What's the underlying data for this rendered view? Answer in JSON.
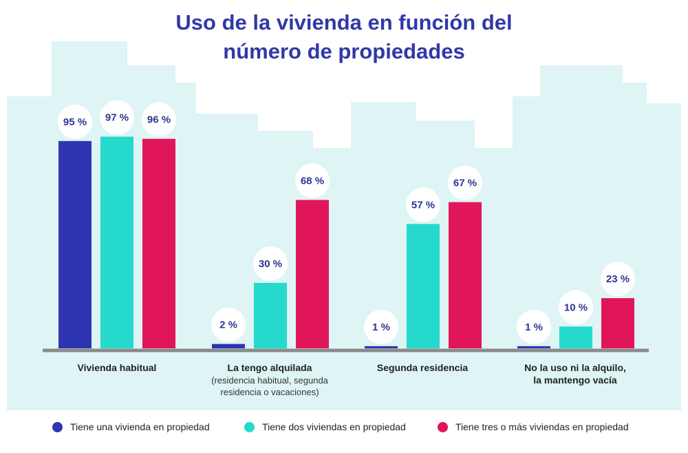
{
  "title": {
    "line1": "Uso de la vivienda en función del",
    "line2": "número de propiedades"
  },
  "colors": {
    "background_skyline": "#dff4f4",
    "baseline": "#8a8a8a",
    "label_bubble": "#ffffff"
  },
  "chart_data": {
    "type": "bar",
    "title": "Uso de la vivienda en función del número de propiedades",
    "categories": [
      "Vivienda habitual",
      "La tengo alquilada (residencia habitual, segunda residencia o vacaciones)",
      "Segunda residencia",
      "No la uso ni la alquilo, la mantengo vacía"
    ],
    "category_lines": [
      {
        "main": [
          "Vivienda habitual"
        ],
        "sub": []
      },
      {
        "main": [
          "La tengo alquilada"
        ],
        "sub": [
          "(residencia habitual, segunda",
          "residencia o vacaciones)"
        ]
      },
      {
        "main": [
          "Segunda residencia"
        ],
        "sub": []
      },
      {
        "main": [
          "No la uso ni la alquilo,",
          "la mantengo vacía"
        ],
        "sub": []
      }
    ],
    "series": [
      {
        "name": "Tiene una vivienda en propiedad",
        "color": "#2e35b0",
        "values": [
          95,
          2,
          1,
          1
        ]
      },
      {
        "name": "Tiene dos viviendas en propiedad",
        "color": "#25d9cc",
        "values": [
          97,
          30,
          57,
          10
        ]
      },
      {
        "name": "Tiene tres o más viviendas en propiedad",
        "color": "#e0155a",
        "values": [
          96,
          68,
          67,
          23
        ]
      }
    ],
    "value_suffix": " %",
    "ylim": [
      0,
      100
    ],
    "grid": false,
    "legend_position": "bottom"
  }
}
